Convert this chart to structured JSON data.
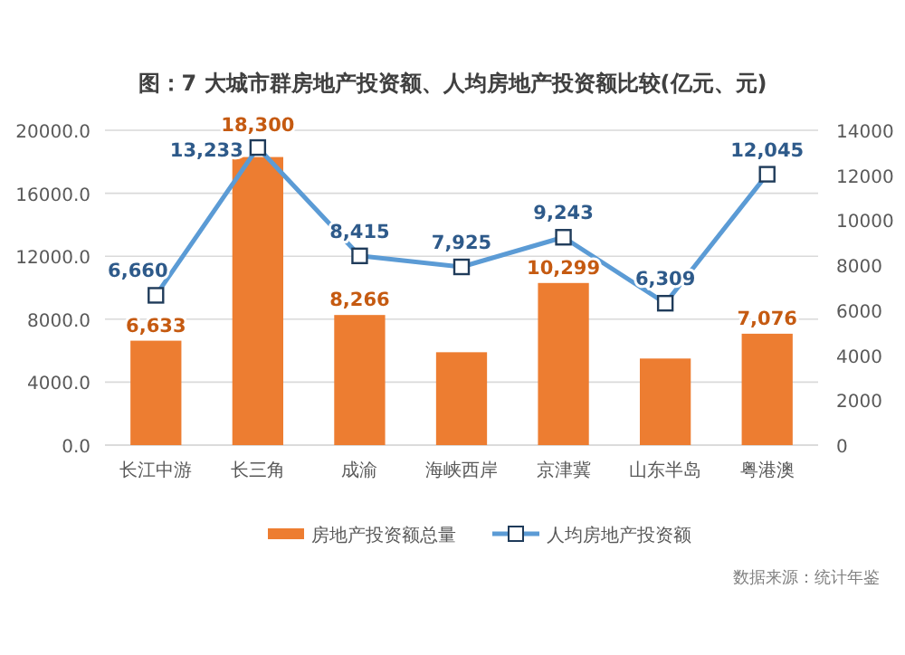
{
  "chart_data": {
    "type": "bar",
    "title": "图：7 大城市群房地产投资额、人均房地产投资额比较(亿元、元)",
    "categories": [
      "长江中游",
      "长三角",
      "成渝",
      "海峡西岸",
      "京津冀",
      "山东半岛",
      "粤港澳"
    ],
    "series": [
      {
        "name": "房地产投资额总量",
        "type": "bar",
        "color": "#ed7d31",
        "values": [
          6633,
          18300,
          8266,
          5900,
          10299,
          5500,
          7076
        ],
        "value_labels": [
          "6,633",
          "18,300",
          "8,266",
          null,
          "10,299",
          null,
          "7,076"
        ]
      },
      {
        "name": "人均房地产投资额",
        "type": "line",
        "axis": "y2",
        "color": "#5b9bd5",
        "marker": "square",
        "values": [
          6660,
          13233,
          8415,
          7925,
          9243,
          6309,
          12045
        ],
        "value_labels": [
          "6,660",
          "13,233",
          "8,415",
          "7,925",
          "9,243",
          "6,309",
          "12,045"
        ]
      }
    ],
    "ylim": [
      0,
      20000
    ],
    "yticks": [
      {
        "value": 0,
        "label": "0.0"
      },
      {
        "value": 4000,
        "label": "4000.0"
      },
      {
        "value": 8000,
        "label": "8000.0"
      },
      {
        "value": 12000,
        "label": "12000.0"
      },
      {
        "value": 16000,
        "label": "16000.0"
      },
      {
        "value": 20000,
        "label": "20000.0"
      }
    ],
    "y2lim": [
      0,
      14000
    ],
    "y2ticks": [
      0,
      2000,
      4000,
      6000,
      8000,
      10000,
      12000,
      14000
    ],
    "grid": "y",
    "legend": "bottom",
    "annotations": [
      "数据来源：统计年鉴"
    ]
  }
}
